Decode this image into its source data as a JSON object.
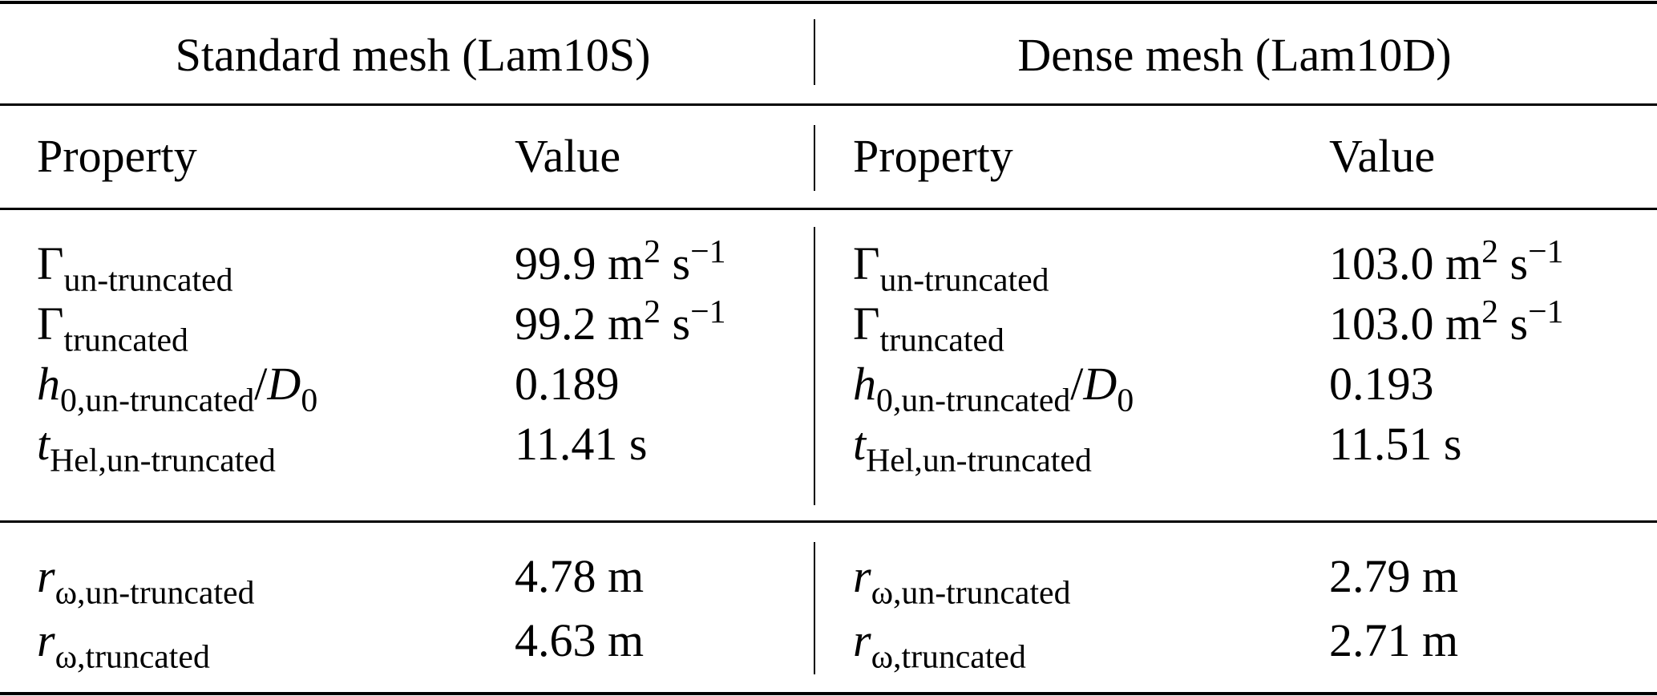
{
  "groups": [
    "Standard mesh (Lam10S)",
    "Dense mesh (Lam10D)"
  ],
  "columns": [
    "Property",
    "Value",
    "Property",
    "Value"
  ],
  "section1": [
    {
      "property": [
        {
          "t": "Γ"
        },
        {
          "sub": "un-truncated"
        }
      ],
      "left": [
        {
          "t": "99.9 m"
        },
        {
          "sup": "2"
        },
        {
          "t": " s"
        },
        {
          "sup": "−1"
        }
      ],
      "right": [
        {
          "t": "103.0 m"
        },
        {
          "sup": "2"
        },
        {
          "t": " s"
        },
        {
          "sup": "−1"
        }
      ]
    },
    {
      "property": [
        {
          "t": "Γ"
        },
        {
          "sub": "truncated"
        }
      ],
      "left": [
        {
          "t": "99.2 m"
        },
        {
          "sup": "2"
        },
        {
          "t": " s"
        },
        {
          "sup": "−1"
        }
      ],
      "right": [
        {
          "t": "103.0 m"
        },
        {
          "sup": "2"
        },
        {
          "t": " s"
        },
        {
          "sup": "−1"
        }
      ]
    },
    {
      "property": [
        {
          "i": "h"
        },
        {
          "sub": "0,un-truncated"
        },
        {
          "t": "/"
        },
        {
          "i": "D"
        },
        {
          "sub": "0"
        }
      ],
      "left": [
        {
          "t": "0.189"
        }
      ],
      "right": [
        {
          "t": "0.193"
        }
      ]
    },
    {
      "property": [
        {
          "i": "t"
        },
        {
          "sub": "Hel,un-truncated"
        }
      ],
      "left": [
        {
          "t": "11.41 s"
        }
      ],
      "right": [
        {
          "t": "11.51 s"
        }
      ]
    }
  ],
  "section2": [
    {
      "property": [
        {
          "i": "r"
        },
        {
          "sub": "ω,un-truncated"
        }
      ],
      "left": [
        {
          "t": "4.78 m"
        }
      ],
      "right": [
        {
          "t": "2.79 m"
        }
      ]
    },
    {
      "property": [
        {
          "i": "r"
        },
        {
          "sub": "ω,truncated"
        }
      ],
      "left": [
        {
          "t": "4.63 m"
        }
      ],
      "right": [
        {
          "t": "2.71 m"
        }
      ]
    }
  ]
}
